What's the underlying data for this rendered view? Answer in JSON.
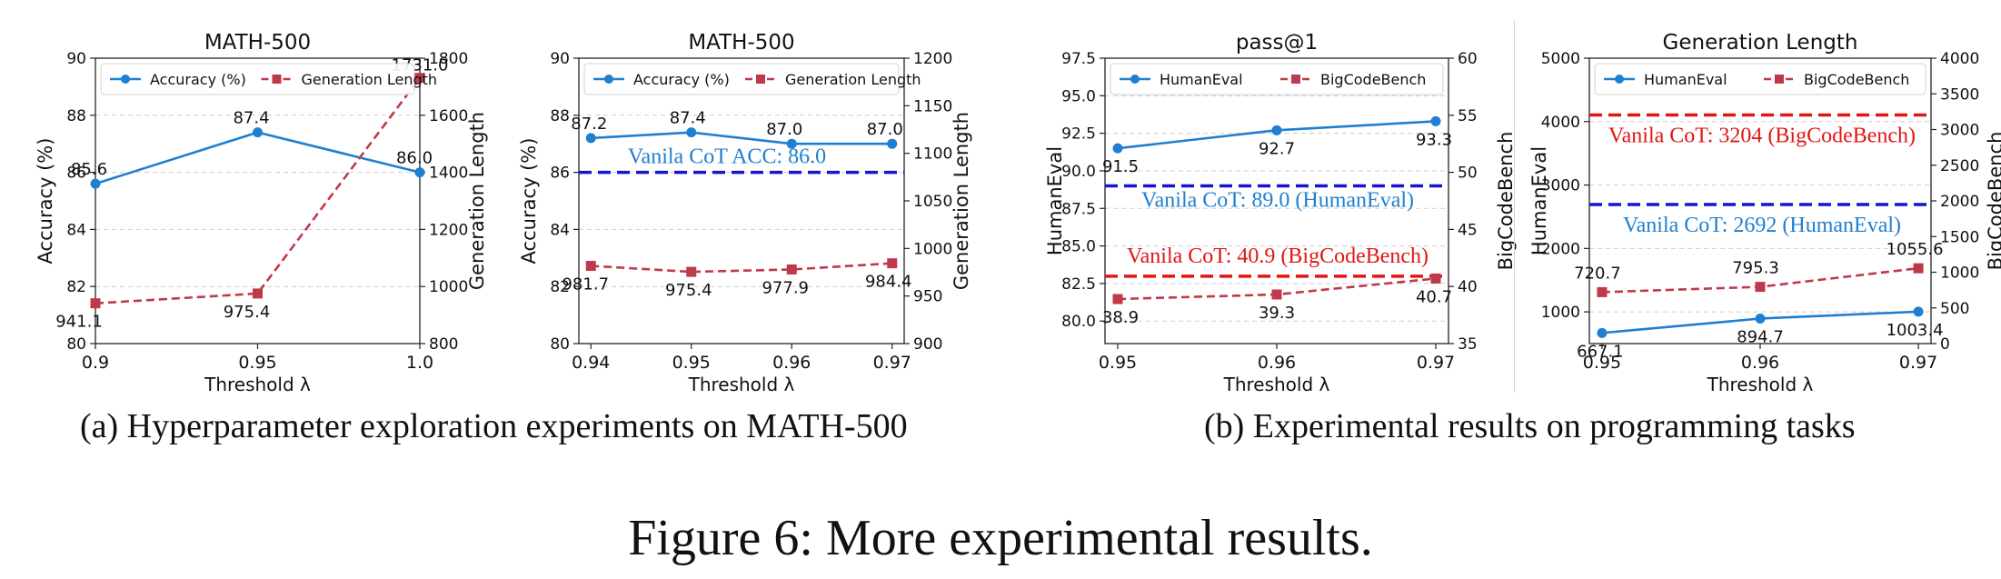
{
  "captions": {
    "a": "(a) Hyperparameter exploration experiments on MATH-500",
    "b": "(b) Experimental results on programming tasks",
    "figure": "Figure 6: More experimental results."
  },
  "colors": {
    "blue": "#1f7fd0",
    "red": "#c0394b",
    "vanila_blue": "#1515d0",
    "vanila_red": "#e01515",
    "vanila_blue_text": "#1f7fd0"
  },
  "chart_data": [
    {
      "type": "line",
      "title": "MATH-500",
      "xlabel": "Threshold λ",
      "ylabel": "Accuracy (%)",
      "y2label": "Generation Length",
      "x": [
        0.9,
        0.95,
        1.0
      ],
      "x_ticks": [
        "0.9",
        "0.95",
        "1.0"
      ],
      "xlim": [
        0.9,
        1.0
      ],
      "ylim": [
        80,
        90
      ],
      "y_ticks": [
        "80",
        "82",
        "84",
        "86",
        "88",
        "90"
      ],
      "y2lim": [
        800,
        1800
      ],
      "y2_ticks": [
        "800",
        "1000",
        "1200",
        "1400",
        "1600",
        "1800"
      ],
      "legend": [
        "Accuracy (%)",
        "Generation Length"
      ],
      "legend_position": "top",
      "series": [
        {
          "name": "Accuracy (%)",
          "axis": "left",
          "values": [
            85.6,
            87.4,
            86.0
          ],
          "labels": [
            "85.6",
            "87.4",
            "86.0"
          ]
        },
        {
          "name": "Generation Length",
          "axis": "right",
          "values": [
            941.1,
            975.4,
            1731.0
          ],
          "labels": [
            "941.1",
            "975.4",
            "1731.0"
          ]
        }
      ],
      "reference_lines": []
    },
    {
      "type": "line",
      "title": "MATH-500",
      "xlabel": "Threshold λ",
      "ylabel": "Accuracy (%)",
      "y2label": "Generation Length",
      "x": [
        0.94,
        0.95,
        0.96,
        0.97
      ],
      "x_ticks": [
        "0.94",
        "0.95",
        "0.96",
        "0.97"
      ],
      "xlim": [
        0.94,
        0.97
      ],
      "ylim": [
        80,
        90
      ],
      "y_ticks": [
        "80",
        "82",
        "84",
        "86",
        "88",
        "90"
      ],
      "y2lim": [
        900,
        1200
      ],
      "y2_ticks": [
        "900",
        "950",
        "1000",
        "1050",
        "1100",
        "1150",
        "1200"
      ],
      "legend": [
        "Accuracy (%)",
        "Generation Length"
      ],
      "legend_position": "top",
      "series": [
        {
          "name": "Accuracy (%)",
          "axis": "left",
          "values": [
            87.2,
            87.4,
            87.0,
            87.0
          ],
          "labels": [
            "87.2",
            "87.4",
            "87.0",
            "87.0"
          ]
        },
        {
          "name": "Generation Length",
          "axis": "right",
          "values": [
            981.7,
            975.4,
            977.9,
            984.4
          ],
          "labels": [
            "981.7",
            "975.4",
            "977.9",
            "984.4"
          ]
        }
      ],
      "reference_lines": [
        {
          "axis": "left",
          "value": 86.0,
          "color": "blue",
          "label": "Vanila CoT ACC: 86.0"
        }
      ]
    },
    {
      "type": "line",
      "title": "pass@1",
      "xlabel": "Threshold λ",
      "ylabel": "HumanEval",
      "y2label": "BigCodeBench",
      "x": [
        0.95,
        0.96,
        0.97
      ],
      "x_ticks": [
        "0.95",
        "0.96",
        "0.97"
      ],
      "xlim": [
        0.95,
        0.97
      ],
      "ylim": [
        78.5,
        97.5
      ],
      "y_ticks": [
        "80.0",
        "82.5",
        "85.0",
        "87.5",
        "90.0",
        "92.5",
        "95.0",
        "97.5"
      ],
      "y2lim": [
        35,
        60
      ],
      "y2_ticks": [
        "35",
        "40",
        "45",
        "50",
        "55",
        "60"
      ],
      "legend": [
        "HumanEval",
        "BigCodeBench"
      ],
      "legend_position": "top",
      "series": [
        {
          "name": "HumanEval",
          "axis": "left",
          "values": [
            91.5,
            92.7,
            93.3
          ],
          "labels": [
            "91.5",
            "92.7",
            "93.3"
          ]
        },
        {
          "name": "BigCodeBench",
          "axis": "right",
          "values": [
            38.9,
            39.3,
            40.7
          ],
          "labels": [
            "38.9",
            "39.3",
            "40.7"
          ]
        }
      ],
      "reference_lines": [
        {
          "axis": "left",
          "value": 89.0,
          "color": "blue",
          "label": "Vanila CoT: 89.0 (HumanEval)"
        },
        {
          "axis": "right",
          "value": 40.9,
          "color": "red",
          "label": "Vanila CoT: 40.9 (BigCodeBench)"
        }
      ]
    },
    {
      "type": "line",
      "title": "Generation Length",
      "xlabel": "Threshold λ",
      "ylabel": "HumanEval",
      "y2label": "BigCodeBench",
      "x": [
        0.95,
        0.96,
        0.97
      ],
      "x_ticks": [
        "0.95",
        "0.96",
        "0.97"
      ],
      "xlim": [
        0.95,
        0.97
      ],
      "ylim": [
        500,
        5000
      ],
      "y_ticks": [
        "1000",
        "2000",
        "3000",
        "4000",
        "5000"
      ],
      "y2lim": [
        0,
        4000
      ],
      "y2_ticks": [
        "0",
        "500",
        "1000",
        "1500",
        "2000",
        "2500",
        "3000",
        "3500",
        "4000"
      ],
      "legend": [
        "HumanEval",
        "BigCodeBench"
      ],
      "legend_position": "top",
      "series": [
        {
          "name": "HumanEval",
          "axis": "left",
          "values": [
            667.1,
            894.7,
            1003.4
          ],
          "labels": [
            "667.1",
            "894.7",
            "1003.4"
          ]
        },
        {
          "name": "BigCodeBench",
          "axis": "right",
          "values": [
            720.7,
            795.3,
            1055.6
          ],
          "labels": [
            "720.7",
            "795.3",
            "1055.6"
          ]
        }
      ],
      "reference_lines": [
        {
          "axis": "right",
          "value": 3204,
          "color": "red",
          "label": "Vanila CoT: 3204 (BigCodeBench)"
        },
        {
          "axis": "left",
          "value": 2692,
          "color": "blue",
          "label": "Vanila CoT: 2692 (HumanEval)"
        }
      ]
    }
  ]
}
